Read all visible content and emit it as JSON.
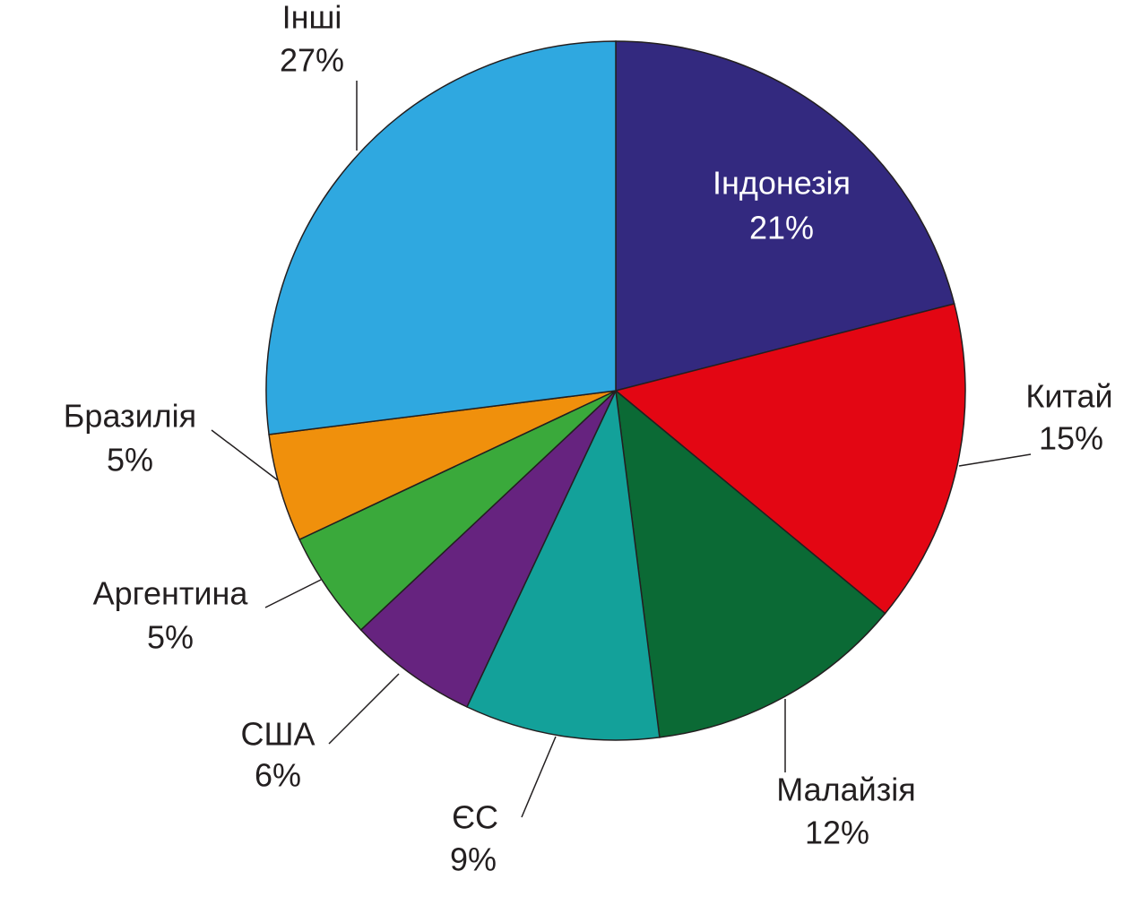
{
  "chart_data": {
    "type": "pie",
    "categories": [
      "Індонезія",
      "Китай",
      "Малайзія",
      "ЄС",
      "США",
      "Аргентина",
      "Бразилія",
      "Інші"
    ],
    "values": [
      21,
      15,
      12,
      9,
      6,
      5,
      5,
      27
    ],
    "value_labels": [
      "21%",
      "15%",
      "12%",
      "9%",
      "6%",
      "5%",
      "5%",
      "27%"
    ],
    "colors": [
      "#33297f",
      "#e30613",
      "#0b6a35",
      "#13a19a",
      "#66237f",
      "#3aa93b",
      "#f0900c",
      "#2fa8e0"
    ]
  }
}
